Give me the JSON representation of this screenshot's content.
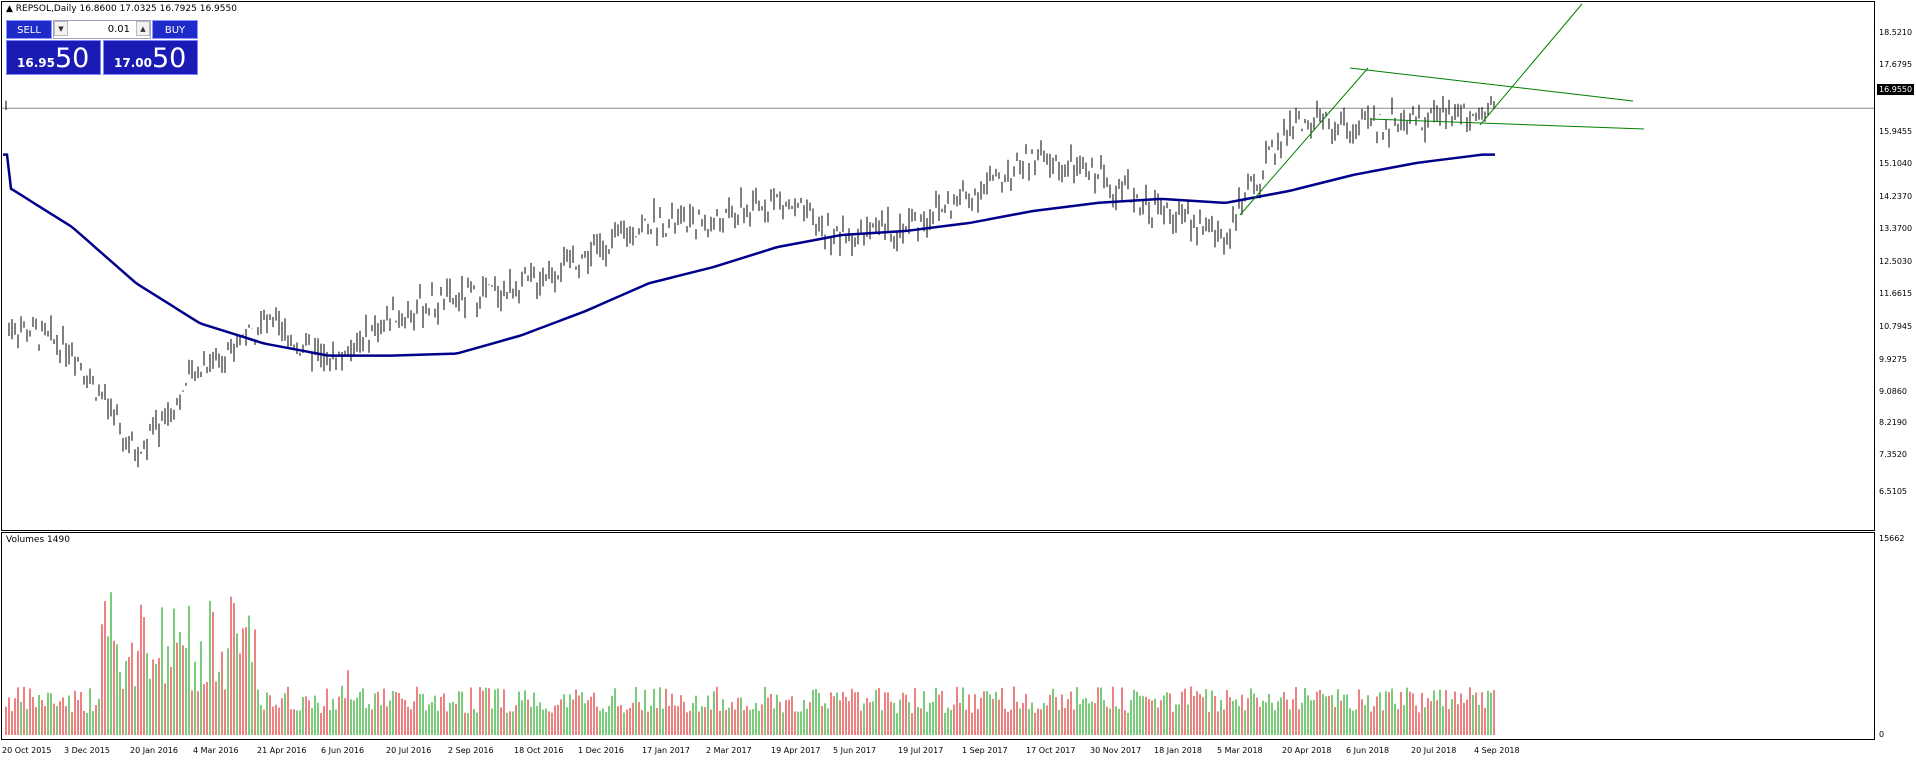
{
  "header": {
    "symbol": "REPSOL,Daily",
    "ohlc": "16.8600 17.0325 16.7925 16.9550"
  },
  "trade_panel": {
    "sell_label": "SELL",
    "buy_label": "BUY",
    "lot": "0.01",
    "bid_small": "16.95",
    "bid_big": "50",
    "ask_small": "17.00",
    "ask_big": "50"
  },
  "price_axis": {
    "labels": [
      "18.5210",
      "17.6795",
      "16.9550",
      "15.9455",
      "15.1040",
      "14.2370",
      "13.3700",
      "12.5030",
      "11.6615",
      "10.7945",
      "9.9275",
      "9.0860",
      "8.2190",
      "7.3520",
      "6.5105"
    ],
    "current": "16.9550"
  },
  "volume_panel": {
    "title": "Volumes 1490",
    "max_label": "15662",
    "min_label": "0"
  },
  "time_axis": {
    "labels": [
      "20 Oct 2015",
      "3 Dec 2015",
      "20 Jan 2016",
      "4 Mar 2016",
      "21 Apr 2016",
      "6 Jun 2016",
      "20 Jul 2016",
      "2 Sep 2016",
      "18 Oct 2016",
      "1 Dec 2016",
      "17 Jan 2017",
      "2 Mar 2017",
      "19 Apr 2017",
      "5 Jun 2017",
      "19 Jul 2017",
      "1 Sep 2017",
      "17 Oct 2017",
      "30 Nov 2017",
      "18 Jan 2018",
      "5 Mar 2018",
      "20 Apr 2018",
      "6 Jun 2018",
      "20 Jul 2018",
      "4 Sep 2018"
    ]
  },
  "chart_data": {
    "type": "line",
    "ylim": [
      6.5105,
      19.4
    ],
    "price_close": [
      [
        "20 Oct 2015",
        11.6
      ],
      [
        "3 Dec 2015",
        11.0
      ],
      [
        "20 Jan 2016",
        8.3
      ],
      [
        "4 Mar 2016",
        10.5
      ],
      [
        "21 Apr 2016",
        11.6
      ],
      [
        "6 Jun 2016",
        10.6
      ],
      [
        "20 Jul 2016",
        11.8
      ],
      [
        "2 Sep 2016",
        12.2
      ],
      [
        "18 Oct 2016",
        12.5
      ],
      [
        "1 Dec 2016",
        13.3
      ],
      [
        "17 Jan 2017",
        14.1
      ],
      [
        "2 Mar 2017",
        14.1
      ],
      [
        "19 Apr 2017",
        14.7
      ],
      [
        "5 Jun 2017",
        13.7
      ],
      [
        "19 Jul 2017",
        14.0
      ],
      [
        "1 Sep 2017",
        14.8
      ],
      [
        "17 Oct 2017",
        15.7
      ],
      [
        "30 Nov 2017",
        15.3
      ],
      [
        "18 Jan 2018",
        14.4
      ],
      [
        "5 Mar 2018",
        13.8
      ],
      [
        "20 Apr 2018",
        16.6
      ],
      [
        "6 Jun 2018",
        16.5
      ],
      [
        "20 Jul 2018",
        16.7
      ],
      [
        "4 Sep 2018",
        16.955
      ]
    ],
    "moving_average": [
      [
        "20 Oct 2015",
        15.0
      ],
      [
        "3 Dec 2015",
        14.0
      ],
      [
        "20 Jan 2016",
        12.6
      ],
      [
        "4 Mar 2016",
        11.6
      ],
      [
        "21 Apr 2016",
        11.1
      ],
      [
        "6 Jun 2016",
        10.8
      ],
      [
        "20 Jul 2016",
        10.8
      ],
      [
        "2 Sep 2016",
        10.85
      ],
      [
        "18 Oct 2016",
        11.3
      ],
      [
        "1 Dec 2016",
        11.9
      ],
      [
        "17 Jan 2017",
        12.6
      ],
      [
        "2 Mar 2017",
        13.0
      ],
      [
        "19 Apr 2017",
        13.5
      ],
      [
        "5 Jun 2017",
        13.8
      ],
      [
        "19 Jul 2017",
        13.9
      ],
      [
        "1 Sep 2017",
        14.1
      ],
      [
        "17 Oct 2017",
        14.4
      ],
      [
        "30 Nov 2017",
        14.6
      ],
      [
        "18 Jan 2018",
        14.7
      ],
      [
        "5 Mar 2018",
        14.6
      ],
      [
        "20 Apr 2018",
        14.9
      ],
      [
        "6 Jun 2018",
        15.3
      ],
      [
        "20 Jul 2018",
        15.6
      ],
      [
        "4 Sep 2018",
        15.8
      ]
    ],
    "volume_max": 15662,
    "colors": {
      "bars": "#000000",
      "moving_average": "#00008b",
      "trendlines": "#008000",
      "volume_up": "#22aa22",
      "volume_down": "#e03030"
    }
  }
}
